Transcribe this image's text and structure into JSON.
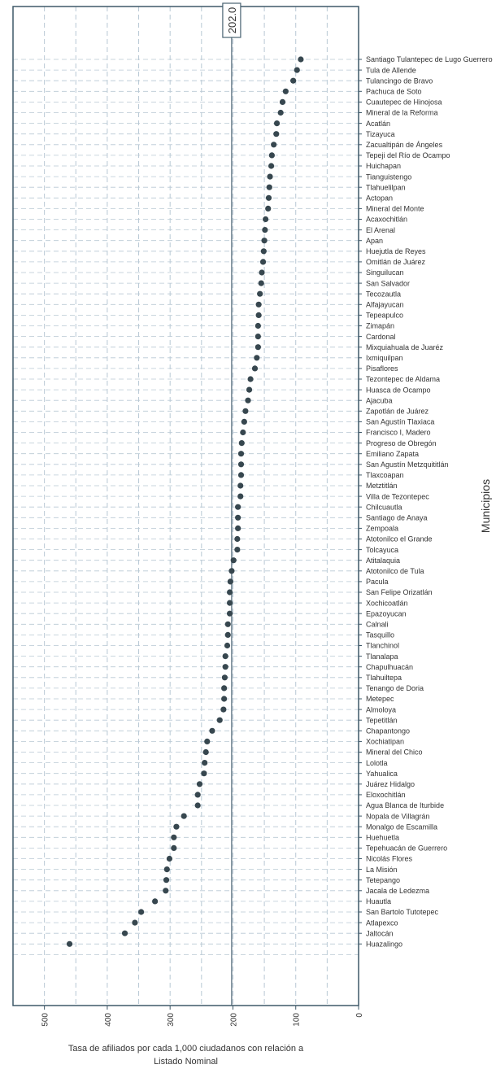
{
  "chart_data": {
    "type": "scatter",
    "orientation": "horizontal",
    "xlabel": "Tasa de afiliados por cada 1,000 ciudadanos con relación a Listado Nominal",
    "ylabel": "Municipios",
    "xlim": [
      550,
      0
    ],
    "x_ticks": [
      "500",
      "400",
      "300",
      "200",
      "100",
      "0"
    ],
    "grid": "dashed vertical and horizontal",
    "reference_line": {
      "value": 202.0,
      "label": "202.0"
    },
    "colors": {
      "point": "#37474f",
      "grid": "#b8c8d4",
      "frame": "#3e5868",
      "ref": "#4a6372"
    },
    "categories": [
      "Santiago Tulantepec de Lugo Guerrero",
      "Tula de Allende",
      "Tulancingo de Bravo",
      "Pachuca de Soto",
      "Cuautepec de Hinojosa",
      "Mineral de la Reforma",
      "Acatlán",
      "Tizayuca",
      "Zacualtipán de Ángeles",
      "Tepeji del Río de Ocampo",
      "Huichapan",
      "Tianguistengo",
      "Tlahuelilpan",
      "Actopan",
      "Mineral del Monte",
      "Acaxochitlán",
      "El Arenal",
      "Apan",
      "Huejutla de Reyes",
      "Omitlán de Juárez",
      "Singuilucan",
      "San Salvador",
      "Tecozautla",
      "Alfajayucan",
      "Tepeapulco",
      "Zimapán",
      "Cardonal",
      "Mixquiahuala de Juaréz",
      "Ixmiquilpan",
      "Pisaflores",
      "Tezontepec de Aldama",
      "Huasca de Ocampo",
      "Ajacuba",
      "Zapotlán de Juárez",
      "San Agustín Tlaxiaca",
      "Francisco I, Madero",
      "Progreso de Obregón",
      "Emiliano Zapata",
      "San Agustín Metzquititlán",
      "Tlaxcoapan",
      "Metztitlán",
      "Villa de Tezontepec",
      "Chilcuautla",
      "Santiago de Anaya",
      "Zempoala",
      "Atotonilco el Grande",
      "Tolcayuca",
      "Atitalaquia",
      "Atotonilco de Tula",
      "Pacula",
      "San Felipe Orizatlán",
      "Xochicoatlán",
      "Epazoyucan",
      "Calnali",
      "Tasquillo",
      "Tlanchinol",
      "Tlanalapa",
      "Chapulhuacán",
      "Tlahuiltepa",
      "Tenango de Doria",
      "Metepec",
      "Almoloya",
      "Tepetitlán",
      "Chapantongo",
      "Xochiatipan",
      "Mineral del Chico",
      "Lolotla",
      "Yahualica",
      "Juárez Hidalgo",
      "Eloxochitlán",
      "Agua Blanca de Iturbide",
      "Nopala de Villagrán",
      "Monalgo de Escamilla",
      "Huehuetla",
      "Tepehuacán de Guerrero",
      "Nicolás Flores",
      "La Misión",
      "Tetepango",
      "Jacala de Ledezma",
      "Huautla",
      "San Bartolo Tutotepec",
      "Atlapexco",
      "Jaltocán",
      "Huazalingo"
    ],
    "values": [
      92,
      98,
      104,
      116,
      121,
      124,
      130,
      131,
      135,
      138,
      139,
      141,
      142,
      143,
      144,
      148,
      149,
      150,
      151,
      152,
      154,
      155,
      157,
      159,
      159,
      160,
      160,
      160,
      162,
      165,
      172,
      174,
      176,
      180,
      182,
      184,
      186,
      187,
      187,
      187,
      188,
      188,
      192,
      192,
      192,
      193,
      193,
      199,
      202,
      204,
      205,
      205,
      205,
      208,
      208,
      209,
      212,
      212,
      213,
      214,
      214,
      215,
      221,
      233,
      241,
      243,
      245,
      246,
      253,
      256,
      256,
      278,
      290,
      294,
      294,
      301,
      305,
      306,
      307,
      324,
      346,
      356,
      372,
      460
    ]
  }
}
